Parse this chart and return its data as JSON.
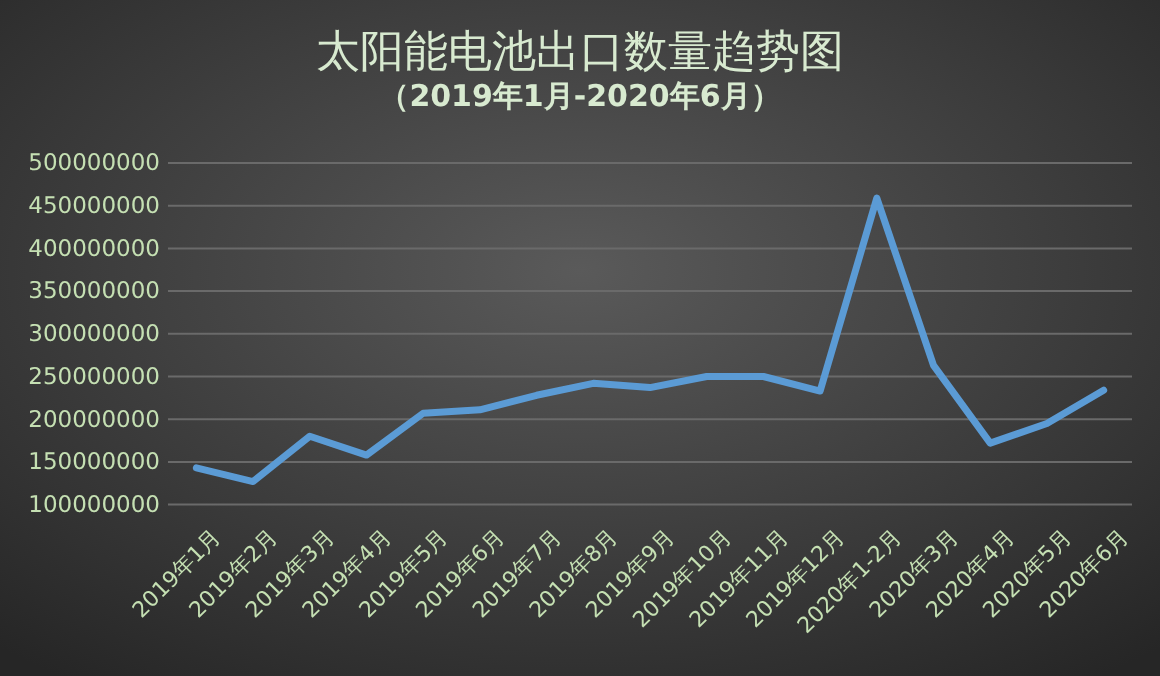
{
  "chart_data": {
    "type": "line",
    "title": "太阳能电池出口数量趋势图",
    "subtitle": "（2019年1月-2020年6月）",
    "categories": [
      "2019年1月",
      "2019年2月",
      "2019年3月",
      "2019年4月",
      "2019年5月",
      "2019年6月",
      "2019年7月",
      "2019年8月",
      "2019年9月",
      "2019年10月",
      "2019年11月",
      "2019年12月",
      "2020年1-2月",
      "2020年3月",
      "2020年4月",
      "2020年5月",
      "2020年6月"
    ],
    "series": [
      {
        "color": "#5b9bd5",
        "values": [
          143000000,
          127000000,
          180000000,
          158000000,
          207000000,
          211000000,
          228000000,
          242000000,
          237000000,
          250000000,
          250000000,
          233000000,
          459000000,
          263000000,
          172000000,
          195000000,
          234000000
        ]
      }
    ],
    "ylim": [
      100000000,
      500000000
    ],
    "yticks": [
      100000000,
      150000000,
      200000000,
      250000000,
      300000000,
      350000000,
      400000000,
      450000000,
      500000000
    ],
    "grid": "y",
    "marker": "none",
    "line_style": "solid"
  }
}
